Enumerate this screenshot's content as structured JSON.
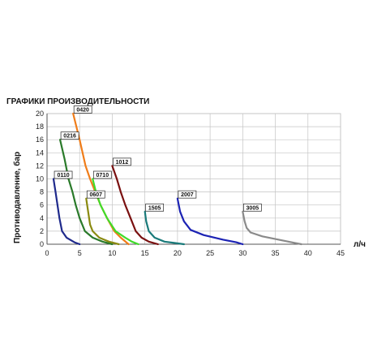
{
  "chart_data": {
    "type": "line",
    "title": "ГРАФИКИ ПРОИЗВОДИТЕЛЬНОСТИ",
    "xlabel": "л/ч",
    "ylabel": "Противодавление, бар",
    "xlim": [
      0,
      45
    ],
    "ylim": [
      0,
      20
    ],
    "x_ticks": [
      "0",
      "5",
      "10",
      "15",
      "20",
      "25",
      "30",
      "35",
      "40",
      "45"
    ],
    "y_ticks": [
      "0",
      "2",
      "4",
      "6",
      "8",
      "10",
      "12",
      "14",
      "16",
      "18",
      "20"
    ],
    "grid": true,
    "series": [
      {
        "name": "0110",
        "color": "#1f2a8c",
        "points": [
          [
            1.0,
            10
          ],
          [
            1.3,
            8
          ],
          [
            1.6,
            6
          ],
          [
            1.9,
            4
          ],
          [
            2.3,
            2
          ],
          [
            3,
            1
          ],
          [
            4.2,
            0.3
          ],
          [
            5,
            0
          ]
        ]
      },
      {
        "name": "0216",
        "color": "#2a7a2a",
        "points": [
          [
            2.0,
            16
          ],
          [
            2.7,
            13
          ],
          [
            3.3,
            10
          ],
          [
            3.9,
            8
          ],
          [
            4.4,
            6
          ],
          [
            5,
            4
          ],
          [
            5.8,
            2
          ],
          [
            7,
            1
          ],
          [
            8.5,
            0.4
          ],
          [
            10,
            0
          ]
        ]
      },
      {
        "name": "0420",
        "color": "#f07d1a",
        "points": [
          [
            4.0,
            20
          ],
          [
            5.0,
            16
          ],
          [
            5.9,
            12
          ],
          [
            6.6,
            10
          ],
          [
            7.4,
            8
          ],
          [
            8.2,
            6
          ],
          [
            9.2,
            4
          ],
          [
            10.3,
            2
          ],
          [
            11.3,
            1
          ],
          [
            12.5,
            0
          ]
        ]
      },
      {
        "name": "0607",
        "color": "#8a8a10",
        "points": [
          [
            6.0,
            7
          ],
          [
            6.3,
            5
          ],
          [
            6.6,
            3
          ],
          [
            7,
            2
          ],
          [
            8,
            1
          ],
          [
            9.5,
            0.4
          ],
          [
            11,
            0
          ]
        ]
      },
      {
        "name": "0710",
        "color": "#3fdc2a",
        "points": [
          [
            7.0,
            10
          ],
          [
            7.5,
            8
          ],
          [
            8.2,
            6
          ],
          [
            9.2,
            4
          ],
          [
            10.5,
            2
          ],
          [
            12,
            1
          ],
          [
            13,
            0.4
          ],
          [
            14,
            0
          ]
        ]
      },
      {
        "name": "1012",
        "color": "#7a1010",
        "points": [
          [
            10.0,
            12
          ],
          [
            10.7,
            10
          ],
          [
            11.3,
            8
          ],
          [
            12.0,
            6
          ],
          [
            12.8,
            4
          ],
          [
            13.6,
            2
          ],
          [
            14.5,
            1
          ],
          [
            15.6,
            0.4
          ],
          [
            17,
            0
          ]
        ]
      },
      {
        "name": "1505",
        "color": "#1a7a7a",
        "points": [
          [
            15.0,
            5
          ],
          [
            15.2,
            3.5
          ],
          [
            15.6,
            2
          ],
          [
            16.5,
            1
          ],
          [
            18,
            0.4
          ],
          [
            19.5,
            0.2
          ],
          [
            21,
            0
          ]
        ]
      },
      {
        "name": "2007",
        "color": "#1c23b4",
        "points": [
          [
            20.0,
            7
          ],
          [
            20.4,
            5
          ],
          [
            21,
            3.5
          ],
          [
            22,
            2.2
          ],
          [
            24,
            1.4
          ],
          [
            27,
            0.7
          ],
          [
            29,
            0.3
          ],
          [
            30,
            0
          ]
        ]
      },
      {
        "name": "3005",
        "color": "#8a8a8a",
        "points": [
          [
            30.0,
            5
          ],
          [
            30.3,
            3.5
          ],
          [
            30.6,
            2.5
          ],
          [
            31.2,
            1.8
          ],
          [
            33,
            1.2
          ],
          [
            36,
            0.6
          ],
          [
            38,
            0.2
          ],
          [
            39,
            0
          ]
        ]
      }
    ]
  }
}
